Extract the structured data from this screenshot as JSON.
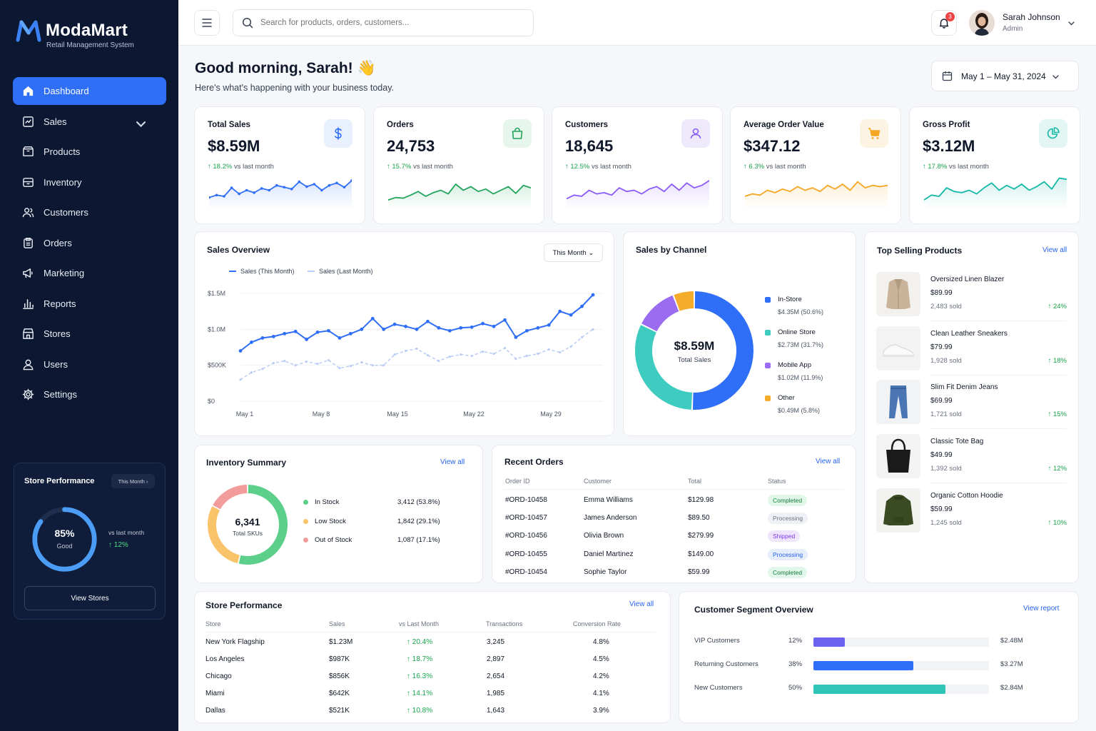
{
  "app": {
    "name": "ModaMart",
    "subtitle": "Retail Management System"
  },
  "sidebar": {
    "items": [
      {
        "label": "Dashboard",
        "icon": "home-icon",
        "active": true
      },
      {
        "label": "Sales",
        "icon": "sales-chart-icon",
        "has_chevron": true
      },
      {
        "label": "Products",
        "icon": "box-icon"
      },
      {
        "label": "Inventory",
        "icon": "inventory-icon"
      },
      {
        "label": "Customers",
        "icon": "users-icon"
      },
      {
        "label": "Orders",
        "icon": "clipboard-icon"
      },
      {
        "label": "Marketing",
        "icon": "megaphone-icon"
      },
      {
        "label": "Reports",
        "icon": "bar-chart-icon"
      },
      {
        "label": "Stores",
        "icon": "store-icon"
      },
      {
        "label": "Users",
        "icon": "user-icon"
      },
      {
        "label": "Settings",
        "icon": "gear-icon"
      }
    ],
    "store_performance": {
      "title": "Store Performance",
      "period": "This Month",
      "value": "85%",
      "value_fraction": 0.85,
      "label": "Good",
      "vs": "vs last month",
      "change": "12%",
      "button": "View Stores"
    }
  },
  "topbar": {
    "search_placeholder": "Search for products, orders, customers...",
    "notifications": "3",
    "user_name": "Sarah Johnson",
    "user_role": "Admin"
  },
  "header": {
    "greeting": "Good morning, Sarah! 👋",
    "subtitle": "Here's what's happening with your business today.",
    "date_range": "May 1 – May 31, 2024"
  },
  "kpis": [
    {
      "title": "Total Sales",
      "value": "$8.59M",
      "change": "18.2%",
      "vs": "vs last month",
      "icon": "dollar-icon",
      "color": "#2f6ef6",
      "bg": "#e8f0fe",
      "spark": [
        18,
        22,
        20,
        34,
        24,
        30,
        26,
        33,
        30,
        38,
        35,
        32,
        44,
        36,
        40,
        30,
        38,
        42,
        35,
        46
      ]
    },
    {
      "title": "Orders",
      "value": "24,753",
      "change": "15.7%",
      "vs": "vs last month",
      "icon": "shopping-bag-icon",
      "color": "#22a45d",
      "bg": "#e6f6ec",
      "spark": [
        14,
        18,
        17,
        22,
        28,
        20,
        26,
        30,
        24,
        40,
        30,
        36,
        28,
        32,
        24,
        30,
        36,
        25,
        38,
        34
      ]
    },
    {
      "title": "Customers",
      "value": "18,645",
      "change": "12.5%",
      "vs": "vs last month",
      "icon": "person-icon",
      "color": "#8b5cf6",
      "bg": "#efe9fc",
      "spark": [
        16,
        22,
        20,
        30,
        24,
        26,
        22,
        34,
        28,
        30,
        24,
        32,
        36,
        28,
        40,
        30,
        42,
        34,
        38,
        46
      ]
    },
    {
      "title": "Average Order Value",
      "value": "$347.12",
      "change": "6.3%",
      "vs": "vs last month",
      "icon": "cart-icon",
      "color": "#f5a623",
      "bg": "#fdf3e2",
      "spark": [
        20,
        24,
        22,
        30,
        26,
        32,
        28,
        36,
        30,
        34,
        28,
        38,
        32,
        40,
        30,
        44,
        34,
        38,
        36,
        38
      ]
    },
    {
      "title": "Gross Profit",
      "value": "$3.12M",
      "change": "17.8%",
      "vs": "vs last month",
      "icon": "pie-chart-icon",
      "color": "#14b8a6",
      "bg": "#e3f6f3",
      "spark": [
        14,
        22,
        20,
        34,
        28,
        26,
        30,
        24,
        34,
        42,
        30,
        38,
        32,
        40,
        30,
        36,
        44,
        32,
        50,
        48
      ]
    }
  ],
  "sales_overview": {
    "title": "Sales Overview",
    "period": "This Month",
    "legend": [
      "Sales (This Month)",
      "Sales (Last Month)"
    ]
  },
  "chart_data": {
    "type": "line",
    "title": "Sales Overview",
    "x_ticks": [
      "May 1",
      "May 8",
      "May 15",
      "May 22",
      "May 29"
    ],
    "y_ticks": [
      "$0",
      "$500K",
      "$1.0M",
      "$1.5M"
    ],
    "ylim": [
      0,
      1500000
    ],
    "series": [
      {
        "name": "Sales (This Month)",
        "color": "#2f6ef6",
        "values": [
          700,
          820,
          880,
          900,
          940,
          970,
          860,
          960,
          980,
          880,
          940,
          1000,
          1150,
          1000,
          1070,
          1040,
          1000,
          1110,
          1020,
          980,
          1020,
          1030,
          1080,
          1040,
          1130,
          890,
          980,
          1020,
          1060,
          1250,
          1200,
          1320,
          1480
        ]
      },
      {
        "name": "Sales (Last Month)",
        "color": "#b9cdf5",
        "values": [
          300,
          400,
          450,
          530,
          560,
          500,
          550,
          520,
          570,
          460,
          490,
          540,
          500,
          500,
          650,
          700,
          730,
          640,
          560,
          620,
          650,
          630,
          690,
          660,
          740,
          590,
          630,
          660,
          720,
          680,
          760,
          890,
          1000
        ]
      }
    ]
  },
  "sales_channel": {
    "title": "Sales by Channel",
    "total": "$8.59M",
    "total_label": "Total Sales",
    "items": [
      {
        "name": "In-Store",
        "value": "$4.35M (50.6%)",
        "pct": 50.6,
        "color": "#2f6ef6"
      },
      {
        "name": "Online Store",
        "value": "$2.73M (31.7%)",
        "pct": 31.7,
        "color": "#3ecbc0"
      },
      {
        "name": "Mobile App",
        "value": "$1.02M (11.9%)",
        "pct": 11.9,
        "color": "#9b6bf0"
      },
      {
        "name": "Other",
        "value": "$0.49M (5.8%)",
        "pct": 5.8,
        "color": "#f5ac2a"
      }
    ]
  },
  "top_products": {
    "title": "Top Selling Products",
    "view_all": "View all",
    "items": [
      {
        "name": "Oversized Linen Blazer",
        "price": "$89.99",
        "sold": "2,483 sold",
        "change": "24%",
        "icon": "blazer-icon"
      },
      {
        "name": "Clean Leather Sneakers",
        "price": "$79.99",
        "sold": "1,928 sold",
        "change": "18%",
        "icon": "sneaker-icon"
      },
      {
        "name": "Slim Fit Denim Jeans",
        "price": "$69.99",
        "sold": "1,721 sold",
        "change": "15%",
        "icon": "jeans-icon"
      },
      {
        "name": "Classic Tote Bag",
        "price": "$49.99",
        "sold": "1,392 sold",
        "change": "12%",
        "icon": "tote-bag-icon"
      },
      {
        "name": "Organic Cotton Hoodie",
        "price": "$59.99",
        "sold": "1,245 sold",
        "change": "10%",
        "icon": "hoodie-icon"
      }
    ]
  },
  "inventory": {
    "title": "Inventory Summary",
    "view_all": "View all",
    "total": "6,341",
    "total_label": "Total SKUs",
    "items": [
      {
        "name": "In Stock",
        "value": "3,412 (53.8%)",
        "pct": 53.8,
        "color": "#5ccf8a"
      },
      {
        "name": "Low Stock",
        "value": "1,842 (29.1%)",
        "pct": 29.1,
        "color": "#f9c36a"
      },
      {
        "name": "Out of Stock",
        "value": "1,087 (17.1%)",
        "pct": 17.1,
        "color": "#f29c9c"
      }
    ]
  },
  "recent_orders": {
    "title": "Recent Orders",
    "view_all": "View all",
    "headers": [
      "Order ID",
      "Customer",
      "Total",
      "Status"
    ],
    "rows": [
      {
        "id": "#ORD-10458",
        "customer": "Emma Williams",
        "total": "$129.98",
        "status": "Completed",
        "status_class": "b-completed"
      },
      {
        "id": "#ORD-10457",
        "customer": "James Anderson",
        "total": "$89.50",
        "status": "Processing",
        "status_class": "b-processing"
      },
      {
        "id": "#ORD-10456",
        "customer": "Olivia Brown",
        "total": "$279.99",
        "status": "Shipped",
        "status_class": "b-shipped"
      },
      {
        "id": "#ORD-10455",
        "customer": "Daniel Martinez",
        "total": "$149.00",
        "status": "Processing",
        "status_class": "b-processing2"
      },
      {
        "id": "#ORD-10454",
        "customer": "Sophie Taylor",
        "total": "$59.99",
        "status": "Completed",
        "status_class": "b-completed"
      }
    ]
  },
  "store_table": {
    "title": "Store Performance",
    "view_all": "View all",
    "headers": [
      "Store",
      "Sales",
      "vs Last Month",
      "Transactions",
      "Conversion Rate"
    ],
    "rows": [
      {
        "store": "New York Flagship",
        "sales": "$1.23M",
        "change": "20.4%",
        "transactions": "3,245",
        "conversion": "4.8%"
      },
      {
        "store": "Los Angeles",
        "sales": "$987K",
        "change": "18.7%",
        "transactions": "2,897",
        "conversion": "4.5%"
      },
      {
        "store": "Chicago",
        "sales": "$856K",
        "change": "16.3%",
        "transactions": "2,654",
        "conversion": "4.2%"
      },
      {
        "store": "Miami",
        "sales": "$642K",
        "change": "14.1%",
        "transactions": "1,985",
        "conversion": "4.1%"
      },
      {
        "store": "Dallas",
        "sales": "$521K",
        "change": "10.8%",
        "transactions": "1,643",
        "conversion": "3.9%"
      }
    ]
  },
  "segments": {
    "title": "Customer Segment Overview",
    "view_report": "View report",
    "items": [
      {
        "name": "VIP Customers",
        "pct": "12%",
        "fraction": 0.12,
        "value": "$2.48M",
        "color": "#6c63f0"
      },
      {
        "name": "Returning Customers",
        "pct": "38%",
        "fraction": 0.38,
        "value": "$3.27M",
        "color": "#2f6ef6"
      },
      {
        "name": "New Customers",
        "pct": "50%",
        "fraction": 0.5,
        "value": "$2.84M",
        "color": "#2ec4b6"
      }
    ]
  }
}
